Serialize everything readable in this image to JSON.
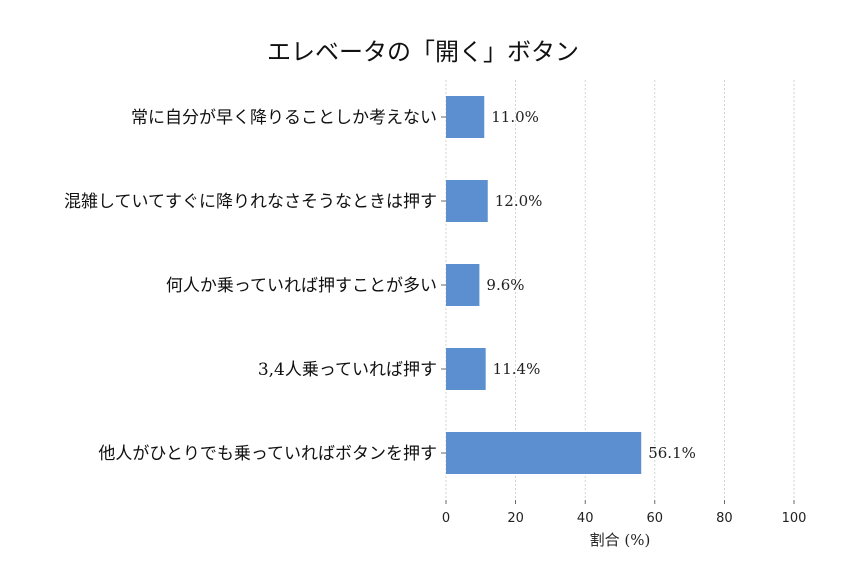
{
  "chart_data": {
    "type": "bar",
    "orientation": "horizontal",
    "title": "エレベータの「開く」ボタン",
    "xlabel": "割合 (%)",
    "ylabel": "",
    "xlim": [
      0,
      100
    ],
    "xticks": [
      "0",
      "20",
      "40",
      "60",
      "80",
      "100"
    ],
    "grid": true,
    "categories": [
      "常に自分が早く降りることしか考えない",
      "混雑していてすぐに降りれなさそうなときは押す",
      "何人か乗っていれば押すことが多い",
      "3,4人乗っていれば押す",
      "他人がひとりでも乗っていればボタンを押す"
    ],
    "values": [
      11.0,
      12.0,
      9.6,
      11.4,
      56.1
    ],
    "data_labels": [
      "11.0%",
      "12.0%",
      "9.6%",
      "11.4%",
      "56.1%"
    ],
    "bar_color": "#5b8fd0"
  }
}
